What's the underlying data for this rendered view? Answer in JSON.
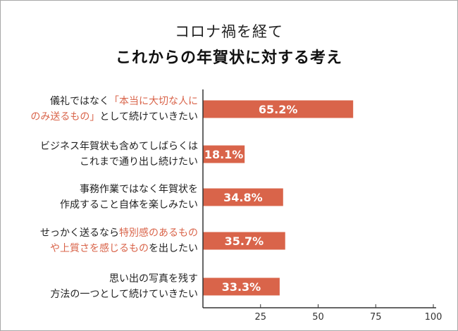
{
  "header": {
    "title_line1": "コロナ禍を経て",
    "title_line2": "これからの年賀状に対する考え"
  },
  "colors": {
    "bar": "#d9644a",
    "highlight": "#d9644a",
    "axis": "#333333"
  },
  "categories": [
    {
      "id": "c1",
      "line1": [
        {
          "t": "儀礼ではなく"
        },
        {
          "t": "「本当に大切な人に",
          "hl": true
        }
      ],
      "line2": [
        {
          "t": "のみ送るもの」",
          "hl": true
        },
        {
          "t": "として続けていきたい"
        }
      ]
    },
    {
      "id": "c2",
      "line1": [
        {
          "t": "ビジネス年賀状も含めてしばらくは"
        }
      ],
      "line2": [
        {
          "t": "これまで通り出し続けたい"
        }
      ]
    },
    {
      "id": "c3",
      "line1": [
        {
          "t": "事務作業ではなく年賀状を"
        }
      ],
      "line2": [
        {
          "t": "作成すること自体を楽しみたい"
        }
      ]
    },
    {
      "id": "c4",
      "line1": [
        {
          "t": "せっかく送るなら"
        },
        {
          "t": "特別感のあるもの",
          "hl": true
        }
      ],
      "line2": [
        {
          "t": "や上質さを感じるもの",
          "hl": true
        },
        {
          "t": "を出したい"
        }
      ]
    },
    {
      "id": "c5",
      "line1": [
        {
          "t": "思い出の写真を残す"
        }
      ],
      "line2": [
        {
          "t": "方法の一つとして続けていきたい"
        }
      ]
    }
  ],
  "chart_data": {
    "type": "bar",
    "orientation": "horizontal",
    "title": "コロナ禍を経て これからの年賀状に対する考え",
    "categories": [
      "儀礼ではなく「本当に大切な人にのみ送るもの」として続けていきたい",
      "ビジネス年賀状も含めてしばらくはこれまで通り出し続けたい",
      "事務作業ではなく年賀状を作成すること自体を楽しみたい",
      "せっかく送るなら特別感のあるものや上質さを感じるものを出したい",
      "思い出の写真を残す方法の一つとして続けていきたい"
    ],
    "values": [
      65.2,
      18.1,
      34.8,
      35.7,
      33.3
    ],
    "value_labels": [
      "65.2%",
      "18.1%",
      "34.8%",
      "35.7%",
      "33.3%"
    ],
    "xlim": [
      0,
      100
    ],
    "xticks": [
      25,
      50,
      75,
      100
    ],
    "xtick_labels": [
      "25",
      "50",
      "75",
      "100"
    ],
    "grid": false,
    "legend": "none"
  }
}
